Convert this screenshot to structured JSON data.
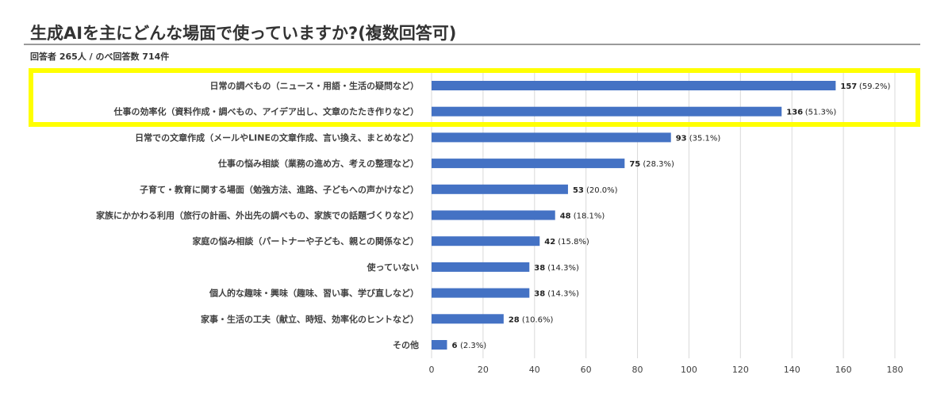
{
  "chart_data": {
    "type": "bar",
    "orientation": "horizontal",
    "title": "生成AIを主にどんな場面で使っていますか?(複数回答可)",
    "subtitle": "回答者 265人 / のべ回答数 714件",
    "categories": [
      "日常の調べもの（ニュース・用語・生活の疑問など）",
      "仕事の効率化（資料作成・調べもの、アイデア出し、文章のたたき作りなど）",
      "日常での文章作成（メールやLINEの文章作成、言い換え、まとめなど）",
      "仕事の悩み相談（業務の進め方、考えの整理など）",
      "子育て・教育に関する場面（勉強方法、進路、子どもへの声かけなど）",
      "家族にかかわる利用（旅行の計画、外出先の調べもの、家族での話題づくりなど）",
      "家庭の悩み相談（パートナーや子ども、親との関係など）",
      "使っていない",
      "個人的な趣味・興味（趣味、習い事、学び直しなど）",
      "家事・生活の工夫（献立、時短、効率化のヒントなど）",
      "その他"
    ],
    "values": [
      157,
      136,
      93,
      75,
      53,
      48,
      42,
      38,
      38,
      28,
      6
    ],
    "percent_labels": [
      "(59.2%)",
      "(51.3%)",
      "(35.1%)",
      "(28.3%)",
      "(20.0%)",
      "(18.1%)",
      "(15.8%)",
      "(14.3%)",
      "(14.3%)",
      "(10.6%)",
      "(2.3%)"
    ],
    "xlim": [
      0,
      180
    ],
    "xticks": [
      0,
      20,
      40,
      60,
      80,
      100,
      120,
      140,
      160,
      180
    ],
    "grid": "vertical",
    "highlighted_categories": [
      0,
      1
    ],
    "colors": {
      "bar": "#4472c4",
      "highlight": "#ffff00",
      "grid": "#d9d9d9",
      "text": "#404040"
    }
  }
}
